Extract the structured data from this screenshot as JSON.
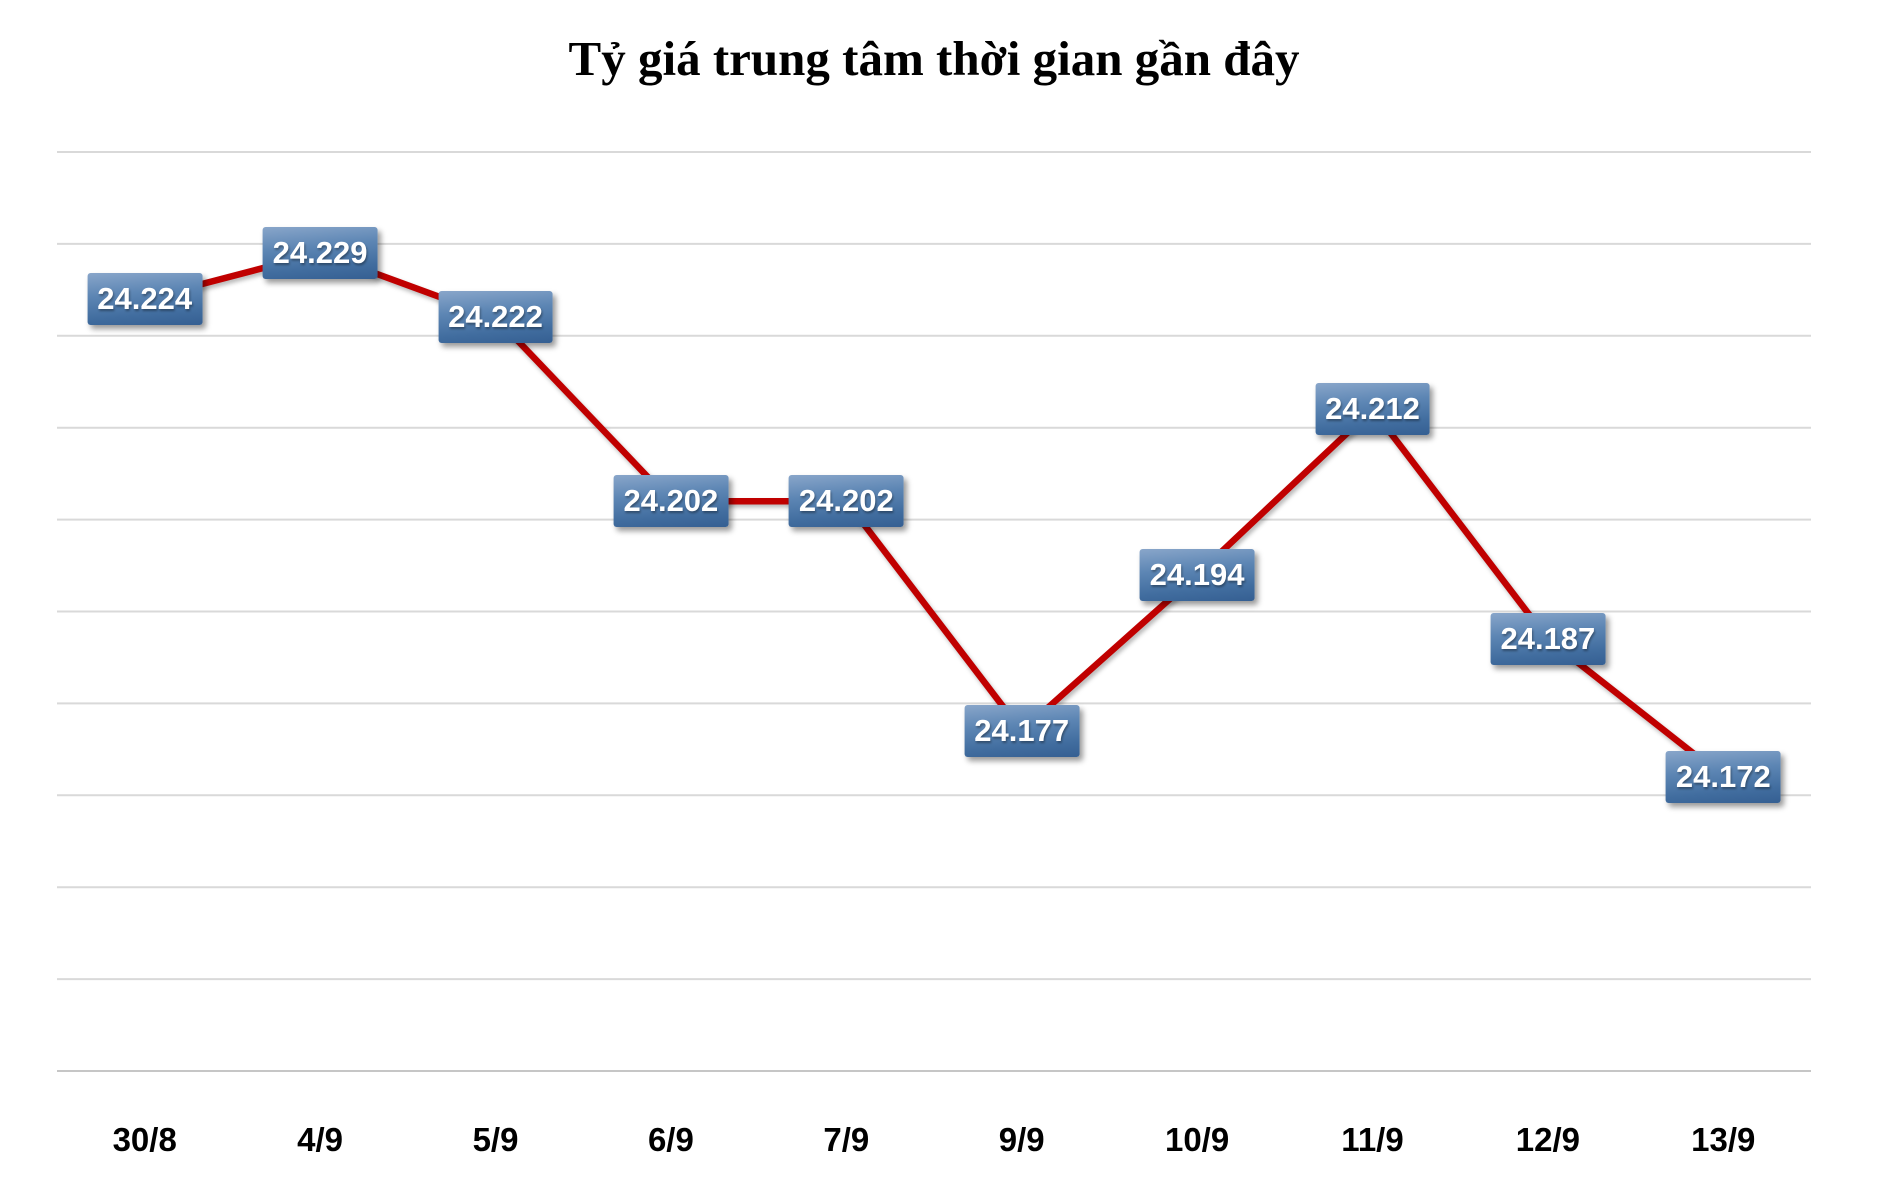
{
  "chart_data": {
    "type": "line",
    "title": "Tỷ giá trung tâm thời gian gần đây",
    "categories": [
      "30/8",
      "4/9",
      "5/9",
      "6/9",
      "7/9",
      "9/9",
      "10/9",
      "11/9",
      "12/9",
      "13/9"
    ],
    "values": [
      24224,
      24229,
      24222,
      24202,
      24202,
      24177,
      24194,
      24212,
      24187,
      24172
    ],
    "data_labels": [
      "24.224",
      "24.229",
      "24.222",
      "24.202",
      "24.202",
      "24.177",
      "24.194",
      "24.212",
      "24.187",
      "24.172"
    ],
    "xlabel": "",
    "ylabel": "",
    "ylim": [
      24140,
      24240
    ],
    "major_unit": 10,
    "grid": true,
    "legend_position": "none",
    "colors": {
      "line": "#c00000",
      "gridline": "#d9d9d9",
      "axis_line": "#c6c6c6",
      "label_box_top": "#89a6ca",
      "label_box_bottom": "#355f92",
      "label_text": "#ffffff",
      "title_text": "#000000",
      "axis_label_text": "#000000",
      "background": "#ffffff"
    }
  }
}
